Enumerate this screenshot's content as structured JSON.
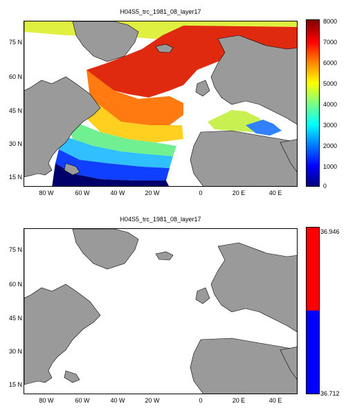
{
  "panels": [
    {
      "title": "H04S5_trc_1981_08_layer17",
      "colorbar_ticks": [
        "8000",
        "7000",
        "6000",
        "5000",
        "4000",
        "3000",
        "2000",
        "1000",
        "0"
      ]
    },
    {
      "title": "H04S5_trc_1981_08_layer17",
      "colorbar_ticks": [
        "36.946",
        "36.712"
      ]
    }
  ],
  "lat_labels": [
    "75 N",
    "60 N",
    "45 N",
    "30 N",
    "15 N"
  ],
  "lon_labels": [
    "80 W",
    "60 W",
    "40 W",
    "20 W",
    "0",
    "20 E",
    "40 E"
  ],
  "colors": {
    "land": "#9a9a9a",
    "ocean": "#ffffff",
    "top_colormap": [
      "#00007f",
      "#0000ff",
      "#007fff",
      "#00ffff",
      "#7fff7f",
      "#ffff00",
      "#ff7f00",
      "#ff0000",
      "#7f0000"
    ],
    "bottom_colorbar": [
      "#ff0000",
      "#0000ff"
    ]
  }
}
